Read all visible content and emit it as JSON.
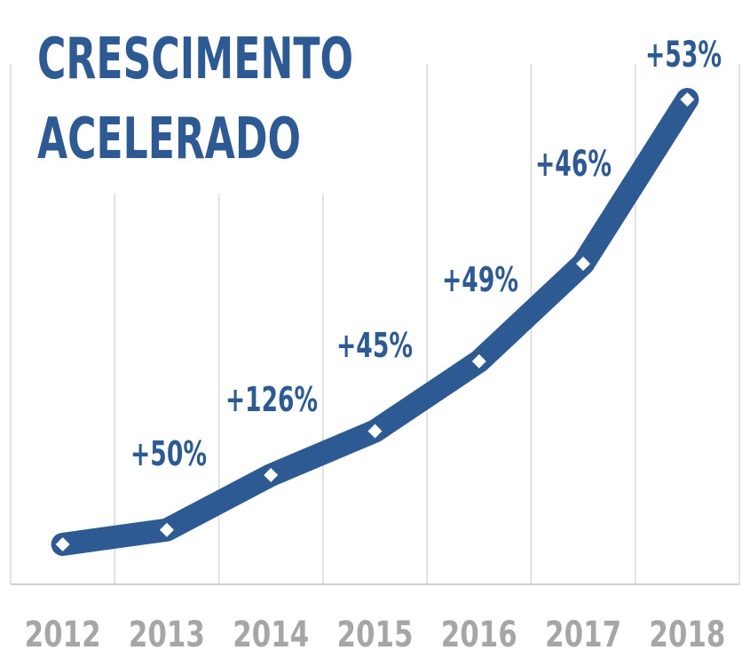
{
  "chart_data": {
    "type": "line",
    "title_lines": [
      "CRESCIMENTO",
      "ACELERADO"
    ],
    "categories": [
      "2012",
      "2013",
      "2014",
      "2015",
      "2016",
      "2017",
      "2018"
    ],
    "values": [
      1.0,
      1.5,
      3.39,
      4.91,
      7.32,
      10.69,
      16.36
    ],
    "data_labels": [
      "",
      "+50%",
      "+126%",
      "+45%",
      "+49%",
      "+46%",
      "+53%"
    ],
    "xlabel": "",
    "ylabel": "",
    "ylim": [
      0,
      16.36
    ],
    "grid": "vertical",
    "line_color": "#2d5a92",
    "marker_color": "#ffffff",
    "grid_color": "#d9d9d9",
    "tick_color": "#a6a6a6"
  }
}
